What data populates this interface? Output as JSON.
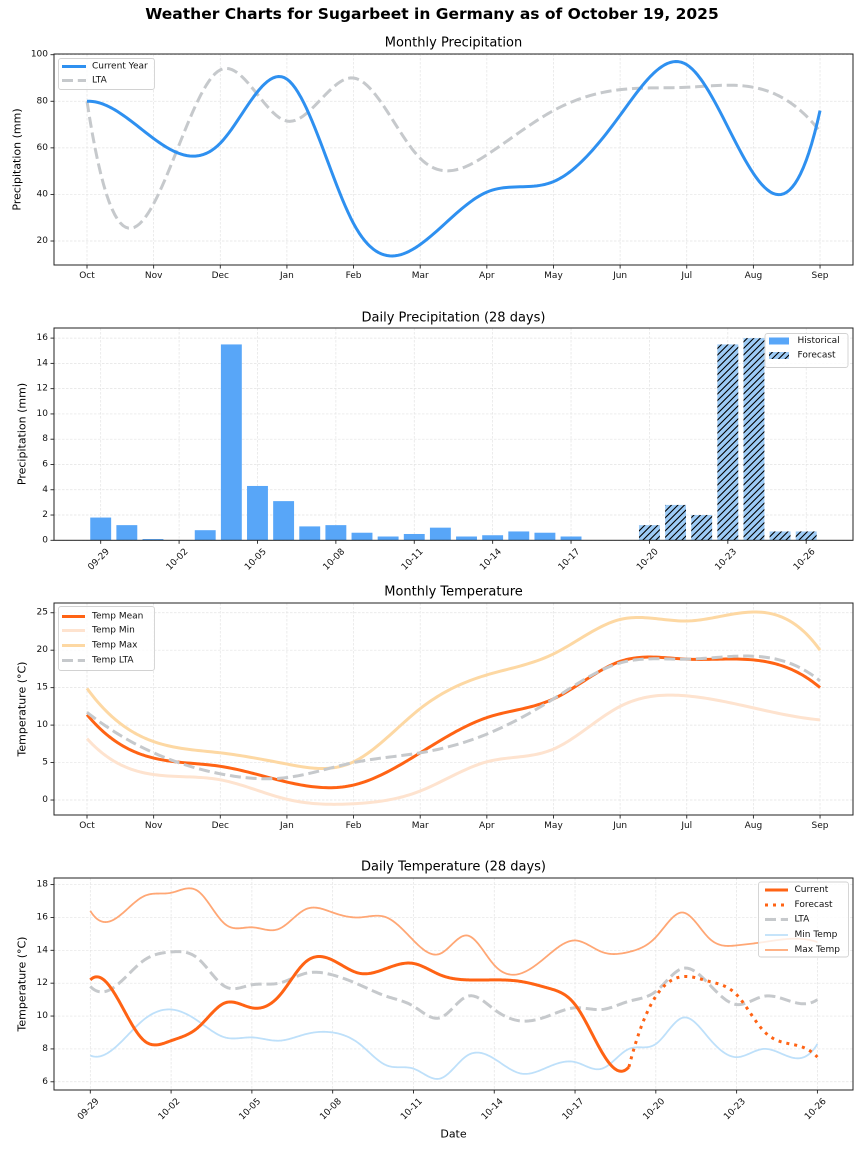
{
  "figure": {
    "title": "Weather Charts for Sugarbeet in Germany as of October 19, 2025"
  },
  "chart_data": [
    {
      "id": "monthly-precipitation",
      "type": "line",
      "title": "Monthly Precipitation",
      "xlabel": "",
      "ylabel": "Precipitation (mm)",
      "categories": [
        "Oct",
        "Nov",
        "Dec",
        "Jan",
        "Feb",
        "Mar",
        "Apr",
        "May",
        "Jun",
        "Jul",
        "Aug",
        "Sep"
      ],
      "series": [
        {
          "name": "Current Year",
          "values": [
            80,
            64,
            62,
            89.5,
            27.5,
            18.5,
            41,
            45.5,
            74,
            95.7,
            49,
            76
          ],
          "color": "#2E90F0",
          "style": "solid"
        },
        {
          "name": "LTA",
          "values": [
            80,
            36,
            93.5,
            71.5,
            90,
            55.5,
            57,
            76,
            85,
            86,
            86,
            67
          ],
          "color": "#C6C9CC",
          "style": "dashed"
        }
      ],
      "ylim": [
        9.7,
        100.3
      ],
      "yticks": [
        20,
        40,
        60,
        80,
        100
      ],
      "grid": true,
      "legend": "top-left"
    },
    {
      "id": "daily-precipitation",
      "type": "bar",
      "title": "Daily Precipitation (28 days)",
      "xlabel": "",
      "ylabel": "Precipitation (mm)",
      "dates": [
        "09-29",
        "09-30",
        "10-01",
        "10-02",
        "10-03",
        "10-04",
        "10-05",
        "10-06",
        "10-07",
        "10-08",
        "10-09",
        "10-10",
        "10-11",
        "10-12",
        "10-13",
        "10-14",
        "10-15",
        "10-16",
        "10-17",
        "10-18",
        "10-19",
        "10-20",
        "10-21",
        "10-22",
        "10-23",
        "10-24",
        "10-25",
        "10-26"
      ],
      "xticks": [
        "09-29",
        "10-02",
        "10-05",
        "10-08",
        "10-11",
        "10-14",
        "10-17",
        "10-20",
        "10-23",
        "10-26"
      ],
      "series": [
        {
          "name": "Historical",
          "color": "#58A6F8",
          "hatch": "none",
          "values": [
            1.8,
            1.2,
            0.1,
            0,
            0.8,
            15.5,
            4.3,
            3.1,
            1.1,
            1.2,
            0.6,
            0.3,
            0.5,
            1.0,
            0.3,
            0.4,
            0.7,
            0.6,
            0.3,
            0,
            0,
            null,
            null,
            null,
            null,
            null,
            null,
            null
          ]
        },
        {
          "name": "Forecast",
          "color": "#9DCBF6",
          "hatch": "///",
          "values": [
            null,
            null,
            null,
            null,
            null,
            null,
            null,
            null,
            null,
            null,
            null,
            null,
            null,
            null,
            null,
            null,
            null,
            null,
            null,
            null,
            null,
            1.2,
            2.8,
            2.0,
            15.5,
            16.0,
            0.7,
            0.7
          ]
        }
      ],
      "ylim": [
        0,
        16.8
      ],
      "yticks": [
        0,
        2,
        4,
        6,
        8,
        10,
        12,
        14,
        16
      ],
      "grid": true,
      "legend": "top-right"
    },
    {
      "id": "monthly-temperature",
      "type": "line",
      "title": "Monthly Temperature",
      "xlabel": "",
      "ylabel": "Temperature (°C)",
      "categories": [
        "Oct",
        "Nov",
        "Dec",
        "Jan",
        "Feb",
        "Mar",
        "Apr",
        "May",
        "Jun",
        "Jul",
        "Aug",
        "Sep"
      ],
      "series": [
        {
          "name": "Temp Mean",
          "values": [
            11.4,
            5.6,
            4.5,
            2.4,
            2.0,
            6.3,
            11.0,
            13.5,
            18.5,
            18.8,
            18.7,
            15.0
          ],
          "color": "#FF6314",
          "style": "solid"
        },
        {
          "name": "Temp Min",
          "values": [
            8.2,
            3.4,
            2.7,
            0.1,
            -0.5,
            1.2,
            5.1,
            6.8,
            12.5,
            13.9,
            12.3,
            10.7
          ],
          "color": "#FEE3CF",
          "style": "solid"
        },
        {
          "name": "Temp Max",
          "values": [
            14.9,
            7.8,
            6.3,
            4.8,
            5.1,
            12.2,
            16.7,
            19.5,
            24.1,
            23.9,
            25.1,
            20.0
          ],
          "color": "#FDD8A3",
          "style": "solid"
        },
        {
          "name": "Temp LTA",
          "values": [
            11.7,
            6.3,
            3.5,
            3.0,
            5.0,
            6.3,
            8.8,
            13.5,
            18.3,
            18.8,
            19.2,
            15.9
          ],
          "color": "#C6C9CC",
          "style": "dashed"
        }
      ],
      "ylim": [
        -2.0,
        26.3
      ],
      "yticks": [
        0,
        5,
        10,
        15,
        20,
        25
      ],
      "grid": true,
      "legend": "top-left"
    },
    {
      "id": "daily-temperature",
      "type": "line",
      "title": "Daily Temperature (28 days)",
      "xlabel": "Date",
      "ylabel": "Temperature (°C)",
      "dates": [
        "09-29",
        "09-30",
        "10-01",
        "10-02",
        "10-03",
        "10-04",
        "10-05",
        "10-06",
        "10-07",
        "10-08",
        "10-09",
        "10-10",
        "10-11",
        "10-12",
        "10-13",
        "10-14",
        "10-15",
        "10-16",
        "10-17",
        "10-18",
        "10-19",
        "10-20",
        "10-21",
        "10-22",
        "10-23",
        "10-24",
        "10-25",
        "10-26"
      ],
      "xticks": [
        "09-29",
        "10-02",
        "10-05",
        "10-08",
        "10-11",
        "10-14",
        "10-17",
        "10-20",
        "10-23",
        "10-26"
      ],
      "series": [
        {
          "name": "Current",
          "color": "#FF6314",
          "style": "solid",
          "values": [
            12.2,
            11.1,
            8.5,
            8.5,
            9.3,
            10.8,
            10.5,
            11.2,
            13.3,
            13.4,
            12.6,
            12.9,
            13.2,
            12.5,
            12.2,
            12.2,
            12.1,
            11.7,
            10.7,
            7.8,
            6.9,
            null,
            null,
            null,
            null,
            null,
            null,
            null
          ]
        },
        {
          "name": "Forecast",
          "color": "#FF6314",
          "style": "dotted",
          "values": [
            null,
            null,
            null,
            null,
            null,
            null,
            null,
            null,
            null,
            null,
            null,
            null,
            null,
            null,
            null,
            null,
            null,
            null,
            null,
            null,
            6.9,
            11.2,
            12.4,
            12.1,
            11.3,
            9.1,
            8.3,
            7.5
          ]
        },
        {
          "name": "LTA",
          "color": "#C6C9CC",
          "style": "dashed",
          "values": [
            11.8,
            11.9,
            13.4,
            13.9,
            13.5,
            11.8,
            11.9,
            12.0,
            12.6,
            12.5,
            11.9,
            11.2,
            10.6,
            9.9,
            11.2,
            10.4,
            9.7,
            10.0,
            10.5,
            10.4,
            10.9,
            11.5,
            12.9,
            11.9,
            10.7,
            11.2,
            10.9,
            11.0
          ]
        },
        {
          "name": "Min Temp",
          "color": "#BEE0FA",
          "style": "solid",
          "values": [
            7.6,
            8.2,
            9.8,
            10.4,
            9.7,
            8.7,
            8.7,
            8.5,
            8.9,
            9.0,
            8.3,
            7.0,
            6.8,
            6.2,
            7.6,
            7.4,
            6.5,
            6.9,
            7.2,
            6.8,
            8.0,
            8.3,
            9.9,
            8.6,
            7.5,
            8.0,
            7.5,
            8.3
          ]
        },
        {
          "name": "Max Temp",
          "color": "#FFA775",
          "style": "solid",
          "values": [
            16.4,
            16.0,
            17.3,
            17.5,
            17.6,
            15.6,
            15.4,
            15.3,
            16.5,
            16.3,
            16.0,
            16.0,
            14.6,
            13.8,
            14.9,
            13.1,
            12.6,
            13.7,
            14.6,
            13.9,
            13.9,
            14.8,
            16.3,
            14.7,
            14.3,
            14.5,
            14.7,
            14.5
          ]
        }
      ],
      "ylim": [
        5.5,
        18.4
      ],
      "yticks": [
        6,
        8,
        10,
        12,
        14,
        16,
        18
      ],
      "grid": true,
      "legend": "top-right"
    }
  ]
}
